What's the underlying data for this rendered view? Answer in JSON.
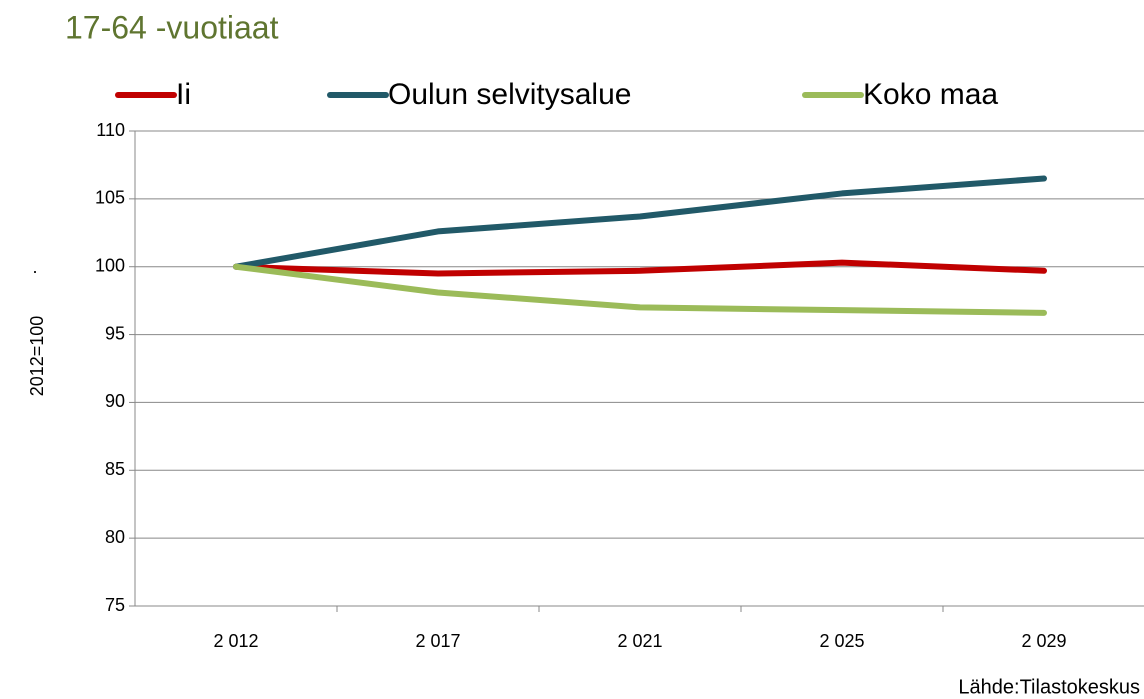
{
  "chart_data": {
    "type": "line",
    "title": "17-64 -vuotiaat",
    "y_label": "2012=100",
    "annotation": ".",
    "source": "Lähde:Tilastokeskus",
    "categories": [
      "2 012",
      "2 017",
      "2 021",
      "2 025",
      "2 029"
    ],
    "series": [
      {
        "name": "Ii",
        "color": "#c00000",
        "values": [
          100,
          99.5,
          99.7,
          100.3,
          99.7
        ]
      },
      {
        "name": "Oulun selvitysalue",
        "color": "#215968",
        "values": [
          100,
          102.6,
          103.7,
          105.4,
          106.5
        ]
      },
      {
        "name": "Koko maa",
        "color": "#9bbb59",
        "values": [
          100,
          98.1,
          97.0,
          96.8,
          96.6
        ]
      }
    ],
    "ylim": [
      75,
      110
    ],
    "yticks": [
      75,
      80,
      85,
      90,
      95,
      100,
      105,
      110
    ],
    "grid": true,
    "legend": "top"
  }
}
